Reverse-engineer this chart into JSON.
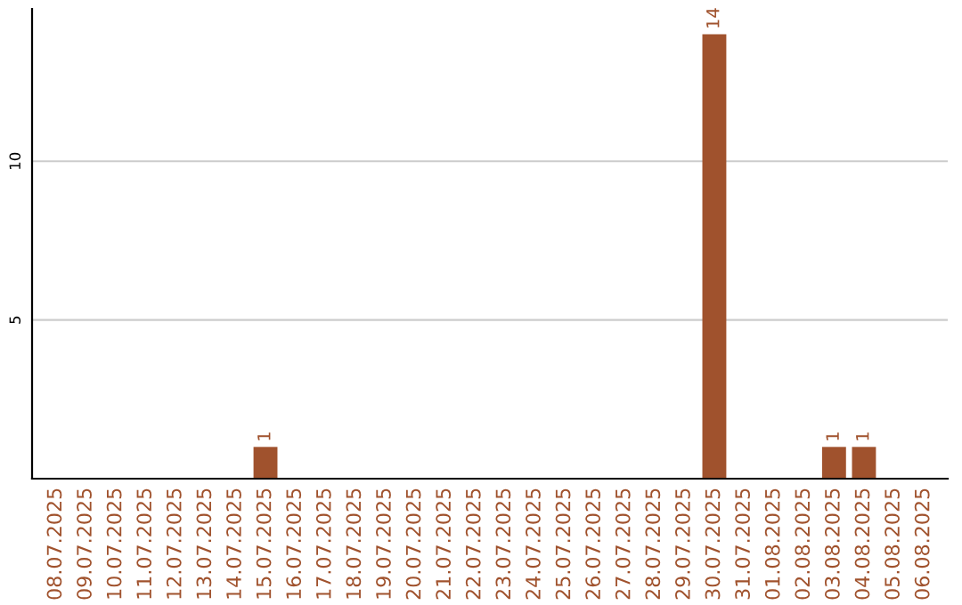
{
  "chart_data": {
    "type": "bar",
    "categories": [
      "08.07.2025",
      "09.07.2025",
      "10.07.2025",
      "11.07.2025",
      "12.07.2025",
      "13.07.2025",
      "14.07.2025",
      "15.07.2025",
      "16.07.2025",
      "17.07.2025",
      "18.07.2025",
      "19.07.2025",
      "20.07.2025",
      "21.07.2025",
      "22.07.2025",
      "23.07.2025",
      "24.07.2025",
      "25.07.2025",
      "26.07.2025",
      "27.07.2025",
      "28.07.2025",
      "29.07.2025",
      "30.07.2025",
      "31.07.2025",
      "01.08.2025",
      "02.08.2025",
      "03.08.2025",
      "04.08.2025",
      "05.08.2025",
      "06.08.2025"
    ],
    "values": [
      0,
      0,
      0,
      0,
      0,
      0,
      0,
      1,
      0,
      0,
      0,
      0,
      0,
      0,
      0,
      0,
      0,
      0,
      0,
      0,
      0,
      0,
      14,
      0,
      0,
      0,
      1,
      1,
      0,
      0
    ],
    "value_labels": [
      null,
      null,
      null,
      null,
      null,
      null,
      null,
      "1",
      null,
      null,
      null,
      null,
      null,
      null,
      null,
      null,
      null,
      null,
      null,
      null,
      null,
      null,
      "14",
      null,
      null,
      null,
      "1",
      "1",
      null,
      null
    ],
    "color": "#a0522d",
    "ylim": [
      0,
      14.8
    ],
    "yticks": [
      5,
      10
    ],
    "grid": "y"
  }
}
